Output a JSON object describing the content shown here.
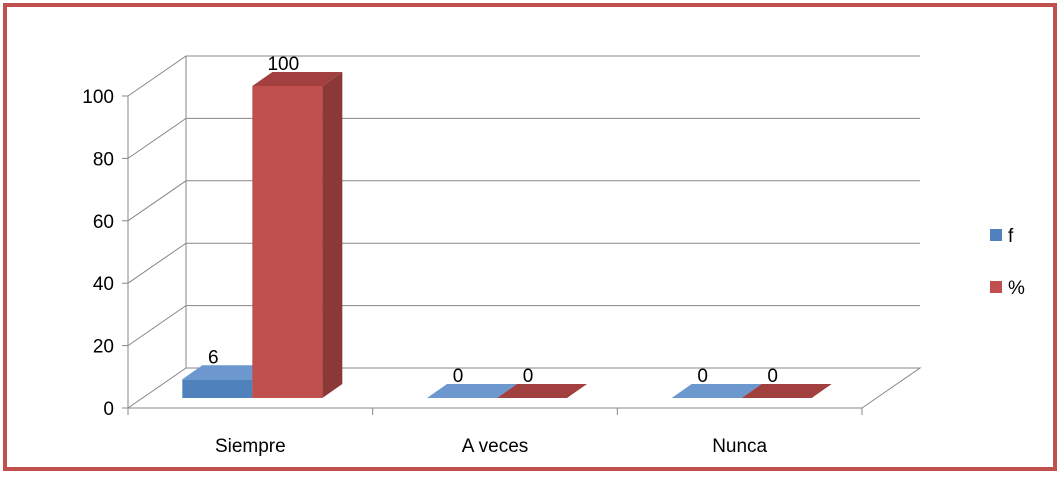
{
  "chart_data": {
    "type": "bar",
    "title": "",
    "xlabel": "",
    "ylabel": "",
    "categories": [
      "Siempre",
      "A veces",
      "Nunca"
    ],
    "series": [
      {
        "name": "f",
        "values": [
          6,
          0,
          0
        ],
        "color": "#4F81BD",
        "side_color": "#385D8A",
        "top_color": "#6D98CF"
      },
      {
        "name": "%",
        "values": [
          100,
          0,
          0
        ],
        "color": "#C0504D",
        "side_color": "#8C3836",
        "top_color": "#A1403E"
      }
    ],
    "ylim": [
      0,
      100
    ],
    "yticks": [
      "0",
      "20",
      "40",
      "60",
      "80",
      "100"
    ],
    "grid": true,
    "view": "3d",
    "legend_position": "right",
    "border_color": "#C0504D"
  }
}
